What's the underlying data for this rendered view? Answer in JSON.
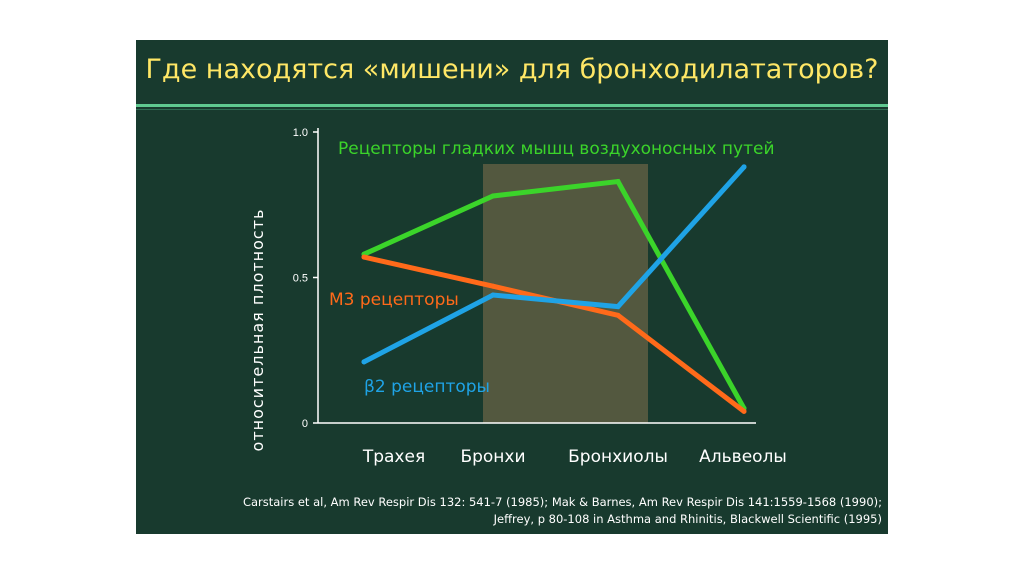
{
  "slide": {
    "title": "Где находятся «мишени» для бронходилататоров?",
    "references": [
      "Carstairs et al, Am Rev Respir Dis 132: 541-7 (1985); Mak & Barnes, Am Rev Respir Dis 141:1559-1568 (1990);",
      "Jeffrey, p 80-108 in Asthma and Rhinitis, Blackwell Scientific (1995)"
    ]
  },
  "colors": {
    "background": "#183a2e",
    "title": "#ffe766",
    "smooth_muscle": "#3bd42a",
    "m3": "#ff6a1a",
    "beta2": "#1fa3e6",
    "highlight": "#5e5e42"
  },
  "chart_data": {
    "type": "line",
    "categories": [
      "Трахея",
      "Бронхи",
      "Бронхиолы",
      "Альвеолы"
    ],
    "ylabel": "относительная плотность",
    "yticks": [
      "0",
      "0.5",
      "1.0"
    ],
    "ylim": [
      0,
      1.0
    ],
    "highlight_range": [
      "Бронхи",
      "Бронхиолы"
    ],
    "series": [
      {
        "name": "Рецепторы гладких мышц воздухоносных путей",
        "color": "#3bd42a",
        "values": [
          0.58,
          0.78,
          0.83,
          0.05
        ]
      },
      {
        "name": "М3 рецепторы",
        "color": "#ff6a1a",
        "values": [
          0.57,
          0.47,
          0.37,
          0.04
        ]
      },
      {
        "name": "β2 рецепторы",
        "color": "#1fa3e6",
        "values": [
          0.21,
          0.44,
          0.4,
          0.88
        ]
      }
    ]
  }
}
